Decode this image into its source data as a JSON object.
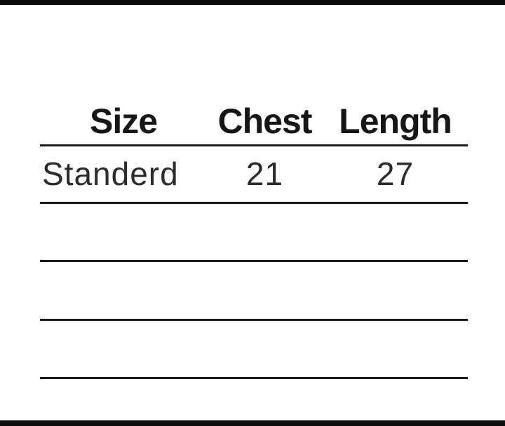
{
  "page": {
    "background": "#ffffff",
    "frame_bar_color": "#0d0d0d",
    "rule_color": "#1b1b1b",
    "header_text_color": "#161616",
    "body_text_color": "#2b2b2b"
  },
  "chart_data": {
    "type": "table",
    "columns": [
      "Size",
      "Chest",
      "Length"
    ],
    "rows": [
      {
        "size": "Standerd",
        "chest": "21",
        "length": "27"
      }
    ],
    "empty_ruled_rows": 3,
    "layout_hints": {
      "grid": "horizontal rules only, no vertical borders",
      "header_weight": "bold",
      "top_bottom_frame_bars": true
    }
  }
}
